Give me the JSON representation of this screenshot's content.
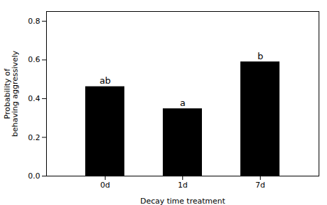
{
  "chart_data": {
    "type": "bar",
    "categories": [
      "0d",
      "1d",
      "7d"
    ],
    "values": [
      0.462,
      0.348,
      0.59
    ],
    "annotations": [
      "ab",
      "a",
      "b"
    ],
    "xlabel": "Decay time treatment",
    "ylabel": "Probability of\nbehaving aggressively",
    "ylim": [
      0.0,
      0.85
    ],
    "yticks": [
      {
        "value": 0,
        "label": "0.0"
      },
      {
        "value": 0.2,
        "label": "0.2"
      },
      {
        "value": 0.4,
        "label": "0.4"
      },
      {
        "value": 0.6,
        "label": "0.6"
      },
      {
        "value": 0.8,
        "label": "0.8"
      }
    ],
    "grid": false
  }
}
